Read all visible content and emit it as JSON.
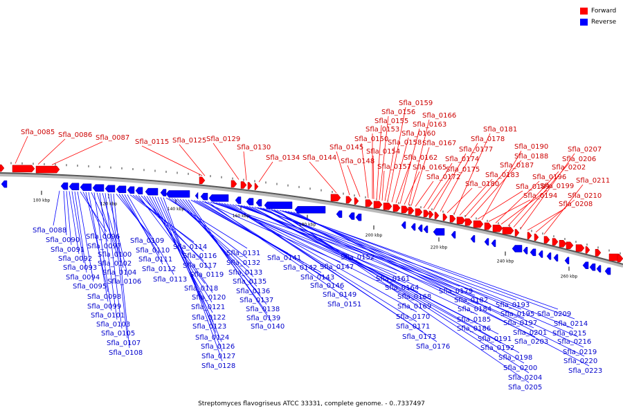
{
  "legend": {
    "forward_label": "Forward",
    "reverse_label": "Reverse",
    "forward_color": "#ff0000",
    "reverse_color": "#0000ff"
  },
  "caption": "Streptomyces flavogriseus ATCC 33331, complete genome. - 0..7337497",
  "ticks": [
    "100 kbp",
    "120 kbp",
    "140 kbp",
    "160 kbp",
    "180 kbp",
    "200 kbp",
    "220 kbp",
    "240 kbp",
    "260 kbp"
  ],
  "forward_labels": [
    "Sfla_0085",
    "Sfla_0086",
    "Sfla_0087",
    "Sfla_0115",
    "Sfla_0125",
    "Sfla_0129",
    "Sfla_0130",
    "Sfla_0134",
    "Sfla_0144",
    "Sfla_0145",
    "Sfla_0148",
    "Sfla_0150",
    "Sfla_0153",
    "Sfla_0154",
    "Sfla_0155",
    "Sfla_0156",
    "Sfla_0157",
    "Sfla_0158",
    "Sfla_0159",
    "Sfla_0160",
    "Sfla_0162",
    "Sfla_0163",
    "Sfla_0165",
    "Sfla_0166",
    "Sfla_0167",
    "Sfla_0172",
    "Sfla_0174",
    "Sfla_0175",
    "Sfla_0177",
    "Sfla_0178",
    "Sfla_0180",
    "Sfla_0181",
    "Sfla_0183",
    "Sfla_0187",
    "Sfla_0188",
    "Sfla_0189",
    "Sfla_0190",
    "Sfla_0194",
    "Sfla_0196",
    "Sfla_0199",
    "Sfla_0202",
    "Sfla_0206",
    "Sfla_0207",
    "Sfla_0208",
    "Sfla_0210",
    "Sfla_0211"
  ],
  "reverse_labels": [
    "Sfla_0088",
    "Sfla_0090",
    "Sfla_0091",
    "Sfla_0092",
    "Sfla_0093",
    "Sfla_0094",
    "Sfla_0095",
    "Sfla_0096",
    "Sfla_0097",
    "Sfla_0098",
    "Sfla_0099",
    "Sfla_0100",
    "Sfla_0101",
    "Sfla_0102",
    "Sfla_0103",
    "Sfla_0104",
    "Sfla_0105",
    "Sfla_0106",
    "Sfla_0107",
    "Sfla_0108",
    "Sfla_0109",
    "Sfla_0110",
    "Sfla_0111",
    "Sfla_0112",
    "Sfla_0113",
    "Sfla_0114",
    "Sfla_0116",
    "Sfla_0117",
    "Sfla_0118",
    "Sfla_0119",
    "Sfla_0120",
    "Sfla_0121",
    "Sfla_0122",
    "Sfla_0123",
    "Sfla_0124",
    "Sfla_0126",
    "Sfla_0127",
    "Sfla_0128",
    "Sfla_0131",
    "Sfla_0132",
    "Sfla_0133",
    "Sfla_0135",
    "Sfla_0136",
    "Sfla_0137",
    "Sfla_0138",
    "Sfla_0139",
    "Sfla_0140",
    "Sfla_0141",
    "Sfla_0142",
    "Sfla_0143",
    "Sfla_0146",
    "Sfla_0147",
    "Sfla_0149",
    "Sfla_0151",
    "Sfla_0152",
    "Sfla_0161",
    "Sfla_0164",
    "Sfla_0168",
    "Sfla_0169",
    "Sfla_0170",
    "Sfla_0171",
    "Sfla_0173",
    "Sfla_0176",
    "Sfla_0179",
    "Sfla_0182",
    "Sfla_0184",
    "Sfla_0185",
    "Sfla_0186",
    "Sfla_0191",
    "Sfla_0192",
    "Sfla_0193",
    "Sfla_0195",
    "Sfla_0197",
    "Sfla_0198",
    "Sfla_0200",
    "Sfla_0201",
    "Sfla_0203",
    "Sfla_0204",
    "Sfla_0205",
    "Sfla_0209",
    "Sfla_0214",
    "Sfla_0215",
    "Sfla_0216",
    "Sfla_0219",
    "Sfla_0220",
    "Sfla_0223"
  ]
}
